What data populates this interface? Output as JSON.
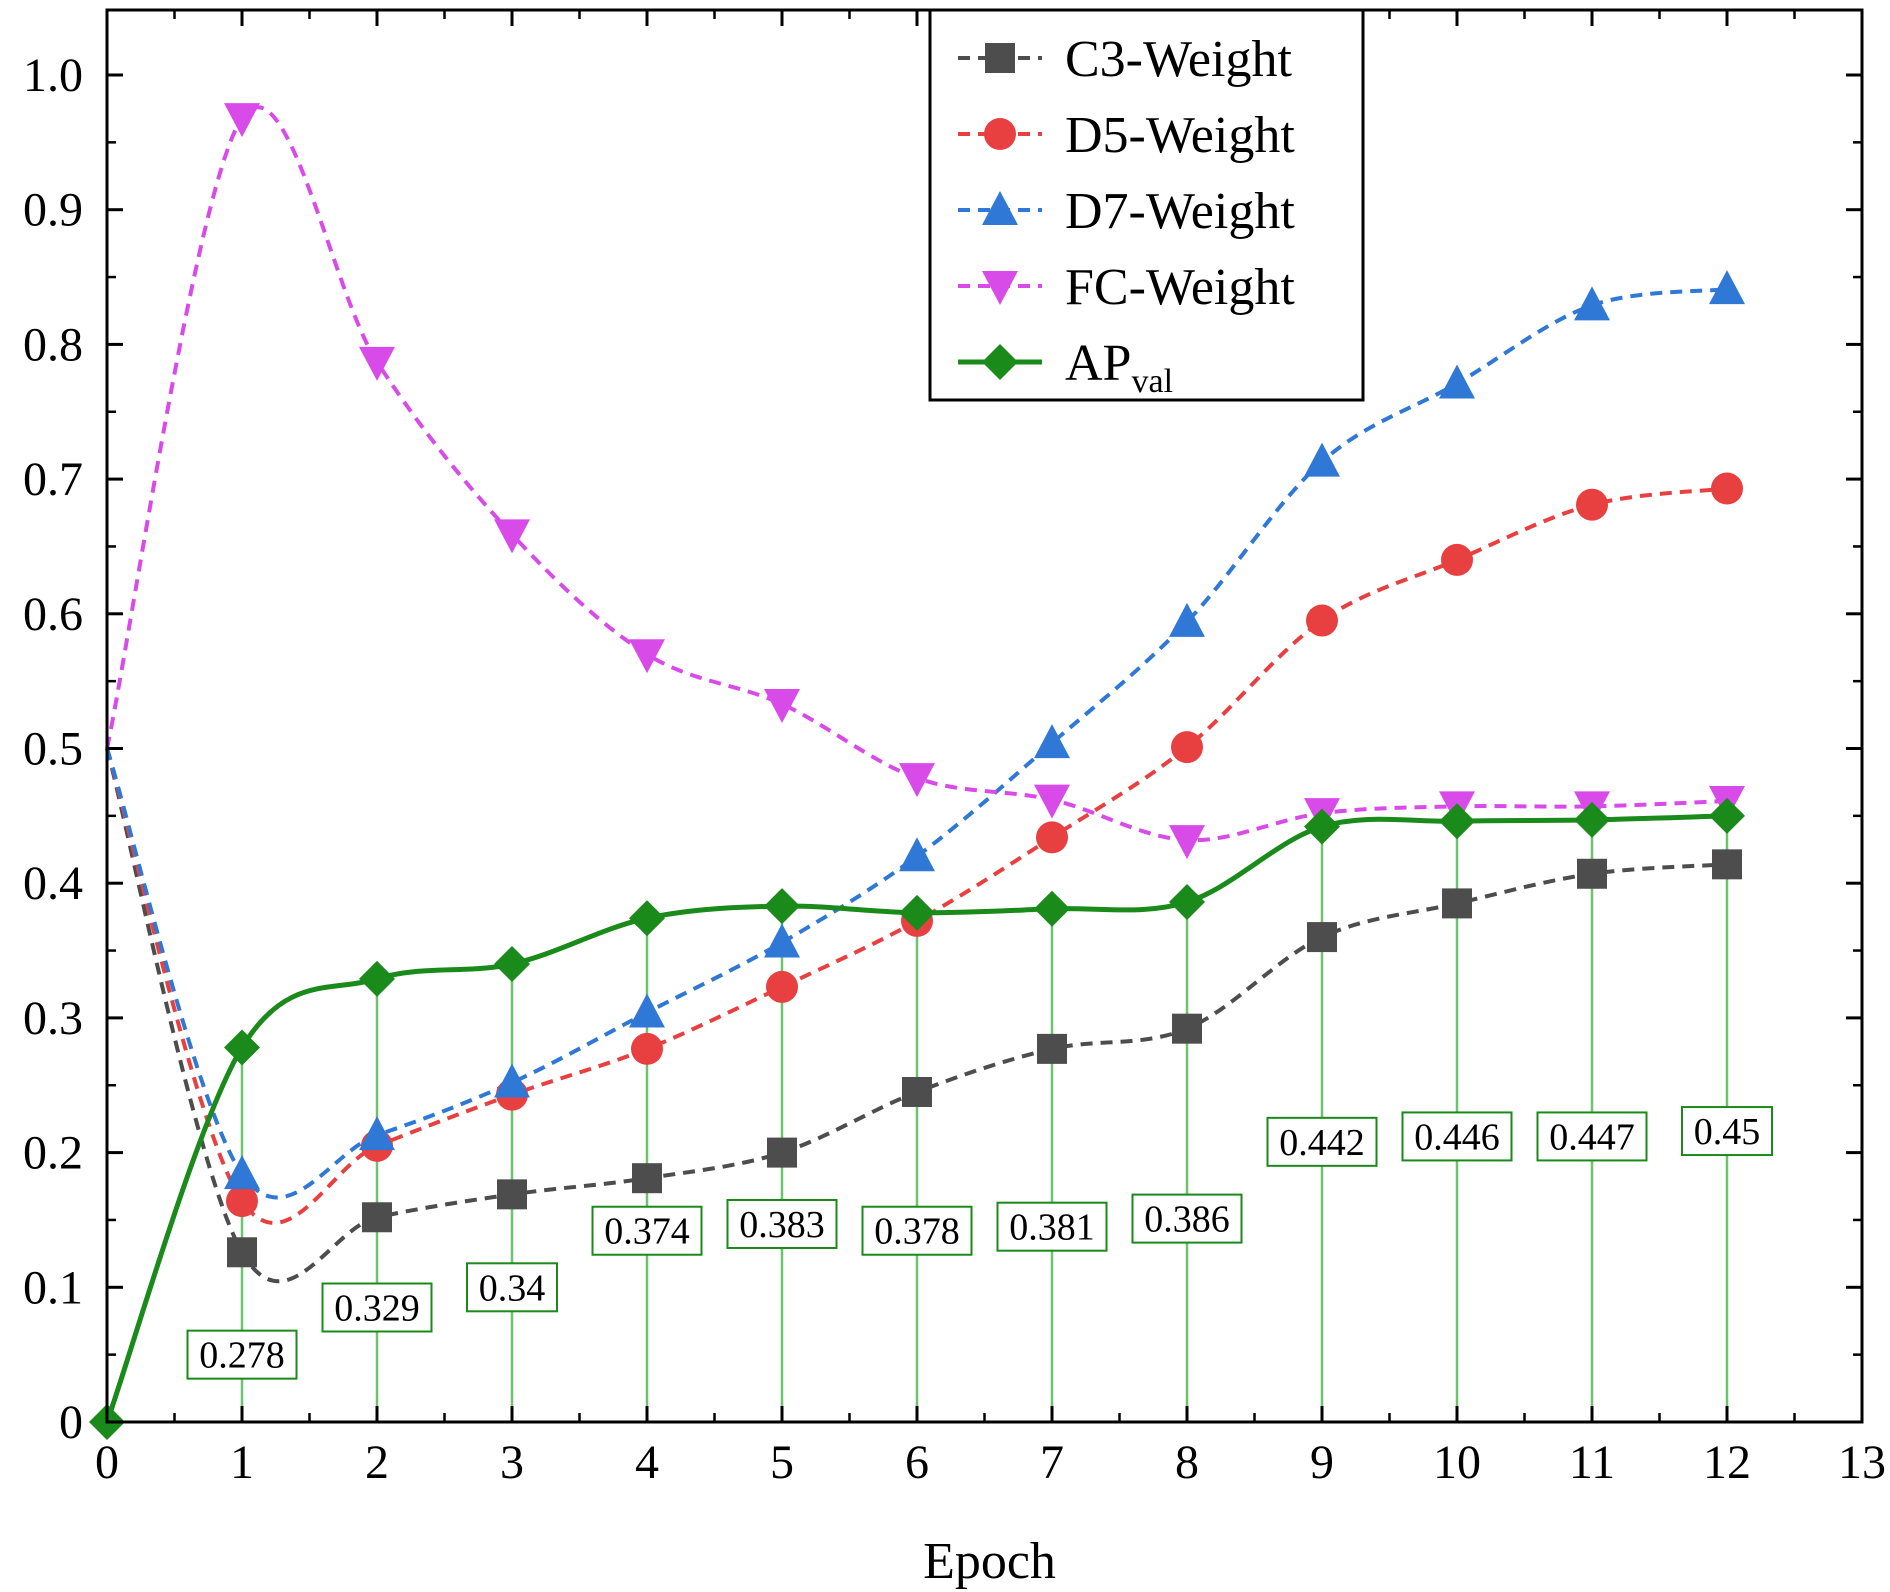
{
  "chart_data": {
    "type": "line",
    "xlabel": "Epoch",
    "ylabel": "",
    "xlim": [
      0,
      13
    ],
    "ylim": [
      0,
      1.05
    ],
    "xticks": [
      0,
      1,
      2,
      3,
      4,
      5,
      6,
      7,
      8,
      9,
      10,
      11,
      12,
      13
    ],
    "yticks": [
      0,
      0.1,
      0.2,
      0.3,
      0.4,
      0.5,
      0.6,
      0.7,
      0.8,
      0.9,
      1.0
    ],
    "ytick_labels": [
      "0",
      "0.1",
      "0.2",
      "0.3",
      "0.4",
      "0.5",
      "0.6",
      "0.7",
      "0.8",
      "0.9",
      "1.0"
    ],
    "legend_position": "top-center",
    "x": [
      0,
      1,
      2,
      3,
      4,
      5,
      6,
      7,
      8,
      9,
      10,
      11,
      12
    ],
    "series": [
      {
        "name": "C3-Weight",
        "color": "#4d4d4d",
        "marker": "square",
        "dashed": true,
        "values": [
          0.5,
          0.126,
          0.152,
          0.169,
          0.181,
          0.2,
          0.245,
          0.277,
          0.292,
          0.36,
          0.385,
          0.407,
          0.414
        ]
      },
      {
        "name": "D5-Weight",
        "color": "#e84040",
        "marker": "circle",
        "dashed": true,
        "values": [
          0.5,
          0.164,
          0.205,
          0.243,
          0.277,
          0.323,
          0.372,
          0.434,
          0.501,
          0.595,
          0.64,
          0.681,
          0.693
        ]
      },
      {
        "name": "D7-Weight",
        "color": "#2f78d6",
        "marker": "triangle-up",
        "dashed": true,
        "values": [
          0.5,
          0.184,
          0.213,
          0.252,
          0.304,
          0.356,
          0.42,
          0.504,
          0.594,
          0.713,
          0.771,
          0.829,
          0.841
        ]
      },
      {
        "name": "FC-Weight",
        "color": "#d94be8",
        "marker": "triangle-down",
        "dashed": true,
        "values": [
          0.5,
          0.968,
          0.787,
          0.659,
          0.57,
          0.533,
          0.478,
          0.462,
          0.432,
          0.452,
          0.457,
          0.457,
          0.461
        ]
      },
      {
        "name": "AP",
        "name_subscript": "val",
        "color": "#1a8a1a",
        "marker": "diamond",
        "dashed": false,
        "values": [
          0,
          0.278,
          0.329,
          0.34,
          0.374,
          0.383,
          0.378,
          0.381,
          0.386,
          0.442,
          0.446,
          0.447,
          0.45
        ]
      }
    ],
    "annotations": [
      {
        "x": 1,
        "text": "0.278",
        "label_y": 0.05
      },
      {
        "x": 2,
        "text": "0.329",
        "label_y": 0.085
      },
      {
        "x": 3,
        "text": "0.34",
        "label_y": 0.1
      },
      {
        "x": 4,
        "text": "0.374",
        "label_y": 0.142
      },
      {
        "x": 5,
        "text": "0.383",
        "label_y": 0.147
      },
      {
        "x": 6,
        "text": "0.378",
        "label_y": 0.142
      },
      {
        "x": 7,
        "text": "0.381",
        "label_y": 0.145
      },
      {
        "x": 8,
        "text": "0.386",
        "label_y": 0.151
      },
      {
        "x": 9,
        "text": "0.442",
        "label_y": 0.208
      },
      {
        "x": 10,
        "text": "0.446",
        "label_y": 0.212
      },
      {
        "x": 11,
        "text": "0.447",
        "label_y": 0.212
      },
      {
        "x": 12,
        "text": "0.45",
        "label_y": 0.216
      }
    ]
  }
}
